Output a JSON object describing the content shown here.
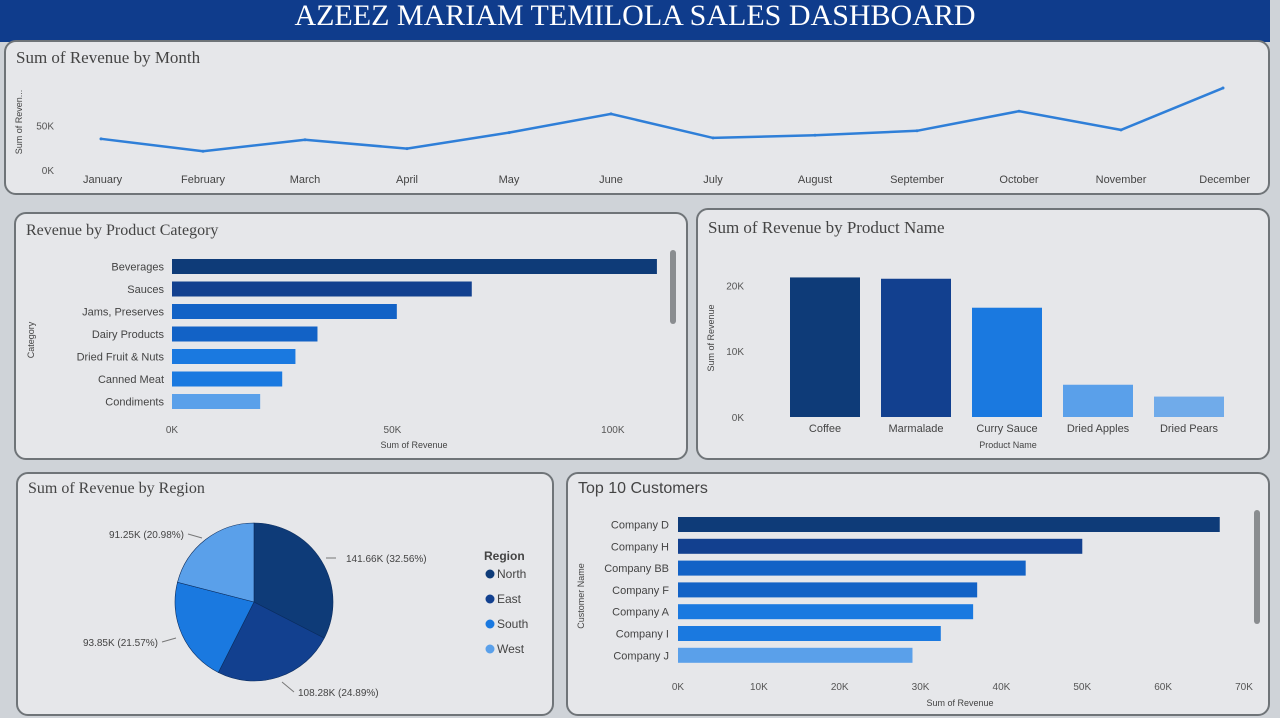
{
  "dashboard": {
    "title": "AZEEZ MARIAM TEMILOLA SALES DASHBOARD"
  },
  "colors": {
    "dark": "#0e3b78",
    "navy": "#12408f",
    "mid": "#1262c6",
    "blue": "#1a79e0",
    "light": "#5aa0ea",
    "line": "#2f7fd8"
  },
  "chart_data": [
    {
      "id": "month",
      "type": "line",
      "title": "Sum of Revenue by Month",
      "ylabel": "Sum of Reven...",
      "xlabel": "",
      "categories": [
        "January",
        "February",
        "March",
        "April",
        "May",
        "June",
        "July",
        "August",
        "September",
        "October",
        "November",
        "December"
      ],
      "values": [
        35000,
        21000,
        34000,
        24000,
        42000,
        63000,
        36000,
        39000,
        44000,
        66000,
        45000,
        92000
      ],
      "yticks": [
        "0K",
        "50K"
      ],
      "ylim": [
        0,
        110000
      ],
      "grid": false
    },
    {
      "id": "category",
      "type": "bar",
      "orientation": "horizontal",
      "title": "Revenue by Product Category",
      "ylabel": "Category",
      "xlabel": "Sum of Revenue",
      "categories": [
        "Beverages",
        "Sauces",
        "Jams, Preserves",
        "Dairy Products",
        "Dried Fruit & Nuts",
        "Canned Meat",
        "Condiments"
      ],
      "values": [
        110000,
        68000,
        51000,
        33000,
        28000,
        25000,
        20000
      ],
      "xticks": [
        "0K",
        "50K",
        "100K"
      ],
      "xlim": [
        0,
        120000
      ]
    },
    {
      "id": "product",
      "type": "bar",
      "orientation": "vertical",
      "title": "Sum of Revenue by Product Name",
      "ylabel": "Sum of Revenue",
      "xlabel": "Product Name",
      "categories": [
        "Coffee",
        "Marmalade",
        "Curry Sauce",
        "Dried Apples",
        "Dried Pears"
      ],
      "values": [
        21200,
        21000,
        16600,
        4900,
        3100
      ],
      "yticks": [
        "0K",
        "10K",
        "20K"
      ],
      "ylim": [
        0,
        24000
      ]
    },
    {
      "id": "region",
      "type": "pie",
      "title": "Sum of Revenue by Region",
      "legend_title": "Region",
      "series": [
        {
          "name": "North",
          "value": 141.66,
          "label": "141.66K (32.56%)"
        },
        {
          "name": "East",
          "value": 108.28,
          "label": "108.28K (24.89%)"
        },
        {
          "name": "South",
          "value": 93.85,
          "label": "93.85K (21.57%)"
        },
        {
          "name": "West",
          "value": 91.25,
          "label": "91.25K (20.98%)"
        }
      ]
    },
    {
      "id": "customers",
      "type": "bar",
      "orientation": "horizontal",
      "title": "Top 10 Customers",
      "ylabel": "Customer Name",
      "xlabel": "Sum of Revenue",
      "categories": [
        "Company D",
        "Company H",
        "Company BB",
        "Company F",
        "Company A",
        "Company I",
        "Company J"
      ],
      "values": [
        67000,
        50000,
        43000,
        37000,
        36500,
        32500,
        29000
      ],
      "xticks": [
        "0K",
        "10K",
        "20K",
        "30K",
        "40K",
        "50K",
        "60K",
        "70K"
      ],
      "xlim": [
        0,
        70000
      ]
    }
  ]
}
